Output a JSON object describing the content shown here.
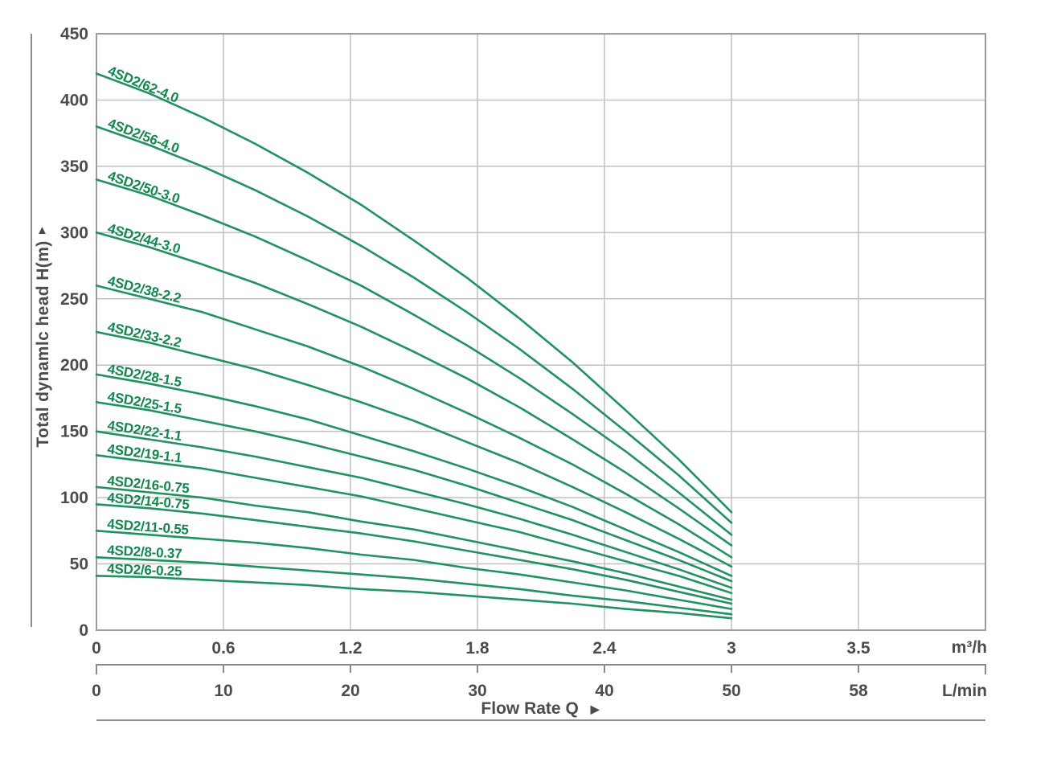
{
  "colors": {
    "curve_line": "#21925f",
    "curve_label": "#12874e",
    "grid": "#c0c0c0",
    "plot_border": "#9c9c9c",
    "axis_line": "#8b8b8b",
    "tick_text": "#4c4c4c"
  },
  "y_axis": {
    "title": "Total dynamlc head H(m)",
    "arrow_up": "▲",
    "tick_labels": [
      "450",
      "400",
      "350",
      "300",
      "250",
      "200",
      "150",
      "100",
      "50",
      "0"
    ]
  },
  "x_axis_primary": {
    "unit": "m³/h",
    "tick_labels": [
      "0",
      "0.6",
      "1.2",
      "1.8",
      "2.4",
      "3",
      "3.5"
    ]
  },
  "x_axis_secondary": {
    "unit": "L/min",
    "tick_labels": [
      "0",
      "10",
      "20",
      "30",
      "40",
      "50",
      "58"
    ]
  },
  "x_title": {
    "label": "Flow Rate Q",
    "arrow_right": "▶"
  },
  "chart_data": {
    "type": "line",
    "xlabel": "Flow Rate Q",
    "ylabel": "Total dynamlc head H(m)",
    "x_unit_primary": "m³/h",
    "x_unit_secondary": "L/min",
    "x_ticks_m3h": [
      0,
      0.6,
      1.2,
      1.8,
      2.4,
      3,
      3.5
    ],
    "x_ticks_lmin": [
      0,
      10,
      20,
      30,
      40,
      50,
      58
    ],
    "y_ticks": [
      0,
      50,
      100,
      150,
      200,
      250,
      300,
      350,
      400,
      450
    ],
    "ylim": [
      0,
      450
    ],
    "grid": true,
    "legend": "inline curve labels",
    "flow_m3h": [
      0,
      0.25,
      0.5,
      0.75,
      1,
      1.25,
      1.5,
      1.75,
      2,
      2.25,
      2.5,
      2.75,
      3
    ],
    "series": [
      {
        "model": "4SD2/62-4.0",
        "head_m": [
          420,
          405,
          387,
          367,
          345,
          321,
          294,
          266,
          235,
          202,
          166,
          129,
          89
        ]
      },
      {
        "model": "4SD2/56-4.0",
        "head_m": [
          380,
          366,
          350,
          332,
          312,
          290,
          266,
          240,
          212,
          182,
          150,
          117,
          81
        ]
      },
      {
        "model": "4SD2/50-3.0",
        "head_m": [
          340,
          328,
          313,
          297,
          279,
          260,
          238,
          215,
          190,
          163,
          135,
          104,
          72
        ]
      },
      {
        "model": "4SD2/44-3.0",
        "head_m": [
          300,
          289,
          276,
          262,
          246,
          229,
          210,
          190,
          168,
          144,
          119,
          92,
          64
        ]
      },
      {
        "model": "4SD2/38-2.2",
        "head_m": [
          260,
          250,
          240,
          227,
          214,
          199,
          182,
          164,
          145,
          125,
          103,
          80,
          55
        ]
      },
      {
        "model": "4SD2/33-2.2",
        "head_m": [
          225,
          217,
          207,
          197,
          185,
          172,
          158,
          142,
          126,
          108,
          89,
          69,
          48
        ]
      },
      {
        "model": "4SD2/28-1.5",
        "head_m": [
          193,
          186,
          178,
          169,
          159,
          147,
          135,
          122,
          108,
          93,
          76,
          59,
          41
        ]
      },
      {
        "model": "4SD2/25-1.5",
        "head_m": [
          172,
          166,
          158,
          150,
          141,
          131,
          121,
          109,
          96,
          83,
          68,
          53,
          37
        ]
      },
      {
        "model": "4SD2/22-1.1",
        "head_m": [
          150,
          144,
          138,
          131,
          123,
          115,
          105,
          95,
          84,
          72,
          59,
          46,
          32
        ]
      },
      {
        "model": "4SD2/19-1.1",
        "head_m": [
          132,
          127,
          122,
          115,
          108,
          101,
          92,
          83,
          74,
          63,
          52,
          41,
          28
        ]
      },
      {
        "model": "4SD2/16-0.75",
        "head_m": [
          108,
          104,
          100,
          94,
          89,
          82,
          76,
          68,
          60,
          52,
          43,
          33,
          23
        ]
      },
      {
        "model": "4SD2/14-0.75",
        "head_m": [
          95,
          92,
          88,
          83,
          78,
          73,
          67,
          60,
          53,
          46,
          38,
          29,
          20
        ]
      },
      {
        "model": "4SD2/11-0.55",
        "head_m": [
          75,
          72,
          69,
          66,
          62,
          57,
          53,
          47,
          42,
          36,
          30,
          23,
          16
        ]
      },
      {
        "model": "4SD2/8-0.37",
        "head_m": [
          55,
          53,
          51,
          48,
          45,
          42,
          39,
          35,
          31,
          26,
          22,
          17,
          12
        ]
      },
      {
        "model": "4SD2/6-0.25",
        "head_m": [
          41,
          40,
          38,
          36,
          34,
          31,
          29,
          26,
          23,
          20,
          16,
          13,
          9
        ]
      }
    ]
  }
}
